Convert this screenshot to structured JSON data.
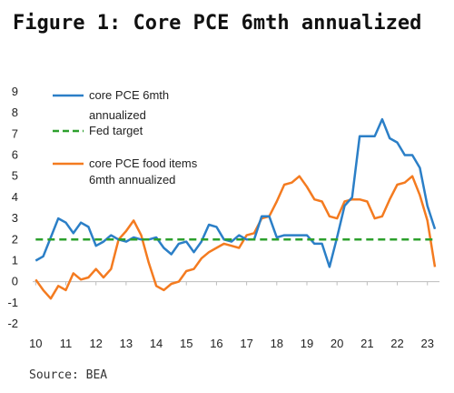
{
  "title": "Figure 1: Core PCE 6mth annualized",
  "source": "Source: BEA",
  "chart_data": {
    "type": "line",
    "title": "Figure 1: Core PCE 6mth annualized",
    "xlabel": "",
    "ylabel": "",
    "xlim": [
      2009.9,
      2023.4
    ],
    "ylim": [
      -2,
      9
    ],
    "x_ticks": [
      "10",
      "11",
      "12",
      "13",
      "14",
      "15",
      "16",
      "17",
      "18",
      "19",
      "20",
      "21",
      "22",
      "23"
    ],
    "y_ticks": [
      "9",
      "8",
      "7",
      "6",
      "5",
      "4",
      "3",
      "2",
      "1",
      "0",
      "-1",
      "-2"
    ],
    "grid": false,
    "legend_position": "top-left",
    "series": [
      {
        "name": "core PCE 6mth annualized",
        "color": "#2b7fc7",
        "style": "solid",
        "x": [
          2010.0,
          2010.25,
          2010.5,
          2010.75,
          2011.0,
          2011.25,
          2011.5,
          2011.75,
          2012.0,
          2012.25,
          2012.5,
          2012.75,
          2013.0,
          2013.25,
          2013.5,
          2013.75,
          2014.0,
          2014.25,
          2014.5,
          2014.75,
          2015.0,
          2015.25,
          2015.5,
          2015.75,
          2016.0,
          2016.25,
          2016.5,
          2016.75,
          2017.0,
          2017.25,
          2017.5,
          2017.75,
          2018.0,
          2018.25,
          2018.5,
          2018.75,
          2019.0,
          2019.25,
          2019.5,
          2019.75,
          2020.0,
          2020.25,
          2020.5,
          2020.75,
          2021.0,
          2021.25,
          2021.5,
          2021.75,
          2022.0,
          2022.25,
          2022.5,
          2022.75,
          2023.0,
          2023.25
        ],
        "y": [
          1.0,
          1.2,
          2.1,
          3.0,
          2.8,
          2.3,
          2.8,
          2.6,
          1.7,
          1.9,
          2.2,
          2.0,
          1.9,
          2.1,
          2.0,
          2.0,
          2.1,
          1.6,
          1.3,
          1.8,
          1.9,
          1.4,
          1.9,
          2.7,
          2.6,
          2.0,
          1.9,
          2.2,
          2.0,
          2.0,
          3.1,
          3.1,
          2.1,
          2.2,
          2.2,
          2.2,
          2.2,
          1.8,
          1.8,
          0.7,
          2.1,
          3.6,
          4.0,
          6.9,
          6.9,
          6.9,
          7.7,
          6.8,
          6.6,
          6.0,
          6.0,
          5.4,
          3.6,
          2.5
        ]
      },
      {
        "name": "Fed target",
        "color": "#2ca02c",
        "style": "dashed",
        "x": [
          2010.0,
          2023.25
        ],
        "y": [
          2.0,
          2.0
        ]
      },
      {
        "name": "core PCE food items 6mth annualized",
        "color": "#f47b20",
        "style": "solid",
        "x": [
          2010.0,
          2010.25,
          2010.5,
          2010.75,
          2011.0,
          2011.25,
          2011.5,
          2011.75,
          2012.0,
          2012.25,
          2012.5,
          2012.75,
          2013.0,
          2013.25,
          2013.5,
          2013.75,
          2014.0,
          2014.25,
          2014.5,
          2014.75,
          2015.0,
          2015.25,
          2015.5,
          2015.75,
          2016.0,
          2016.25,
          2016.5,
          2016.75,
          2017.0,
          2017.25,
          2017.5,
          2017.75,
          2018.0,
          2018.25,
          2018.5,
          2018.75,
          2019.0,
          2019.25,
          2019.5,
          2019.75,
          2020.0,
          2020.25,
          2020.5,
          2020.75,
          2021.0,
          2021.25,
          2021.5,
          2021.75,
          2022.0,
          2022.25,
          2022.5,
          2022.75,
          2023.0,
          2023.25
        ],
        "y": [
          0.1,
          -0.4,
          -0.8,
          -0.2,
          -0.4,
          0.4,
          0.1,
          0.2,
          0.6,
          0.2,
          0.6,
          2.0,
          2.4,
          2.9,
          2.2,
          0.9,
          -0.2,
          -0.4,
          -0.1,
          0.0,
          0.5,
          0.6,
          1.1,
          1.4,
          1.6,
          1.8,
          1.7,
          1.6,
          2.2,
          2.3,
          3.0,
          3.1,
          3.8,
          4.6,
          4.7,
          5.0,
          4.5,
          3.9,
          3.8,
          3.1,
          3.0,
          3.8,
          3.9,
          3.9,
          3.8,
          3.0,
          3.1,
          3.9,
          4.6,
          4.7,
          5.0,
          4.1,
          2.9,
          0.7
        ]
      }
    ]
  }
}
